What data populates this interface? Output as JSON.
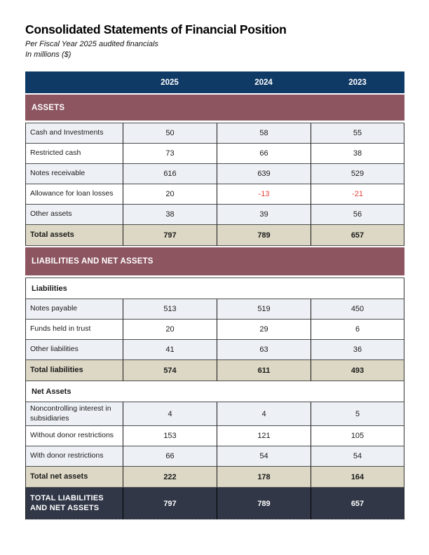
{
  "page": {
    "title": "Consolidated Statements of Financial Position",
    "subtitle1": "Per Fiscal Year 2025 audited financials",
    "subtitle2": "In millions ($)"
  },
  "colors": {
    "header_navy": "#0F3A66",
    "band_maroon": "#8C5560",
    "row_light": "#EDF0F5",
    "row_white": "#FFFFFF",
    "total_beige": "#DCD8C5",
    "grand_total_slate": "#313747",
    "negative_red": "#E8403A"
  },
  "table": {
    "year_headers": [
      "2025",
      "2024",
      "2023"
    ],
    "assets": {
      "band_label": "ASSETS",
      "rows": [
        {
          "label": "Cash and Investments",
          "values": [
            "50",
            "58",
            "55"
          ]
        },
        {
          "label": "Restricted cash",
          "values": [
            "73",
            "66",
            "38"
          ]
        },
        {
          "label": "Notes receivable",
          "values": [
            "616",
            "639",
            "529"
          ]
        },
        {
          "label": "Allowance for loan losses",
          "values": [
            "20",
            "-13",
            "-21"
          ]
        },
        {
          "label": "Other assets",
          "values": [
            "38",
            "39",
            "56"
          ]
        }
      ],
      "total": {
        "label": "Total assets",
        "values": [
          "797",
          "789",
          "657"
        ]
      }
    },
    "liabilities_net_assets": {
      "band_label": "LIABILITIES AND NET ASSETS",
      "liabilities": {
        "sub_label": "Liabilities",
        "rows": [
          {
            "label": "Notes payable",
            "values": [
              "513",
              "519",
              "450"
            ]
          },
          {
            "label": "Funds held in trust",
            "values": [
              "20",
              "29",
              "6"
            ]
          },
          {
            "label": "Other liabilities",
            "values": [
              "41",
              "63",
              "36"
            ]
          }
        ],
        "total": {
          "label": "Total liabilities",
          "values": [
            "574",
            "611",
            "493"
          ]
        }
      },
      "net_assets": {
        "sub_label": "Net Assets",
        "rows": [
          {
            "label": "Noncontrolling interest in subsidiaries",
            "values": [
              "4",
              "4",
              "5"
            ]
          },
          {
            "label": "Without donor restrictions",
            "values": [
              "153",
              "121",
              "105"
            ]
          },
          {
            "label": "With donor restrictions",
            "values": [
              "66",
              "54",
              "54"
            ]
          }
        ],
        "total": {
          "label": "Total net assets",
          "values": [
            "222",
            "178",
            "164"
          ]
        }
      },
      "grand_total": {
        "label": "TOTAL LIABILITIES AND NET ASSETS",
        "values": [
          "797",
          "789",
          "657"
        ]
      }
    }
  }
}
